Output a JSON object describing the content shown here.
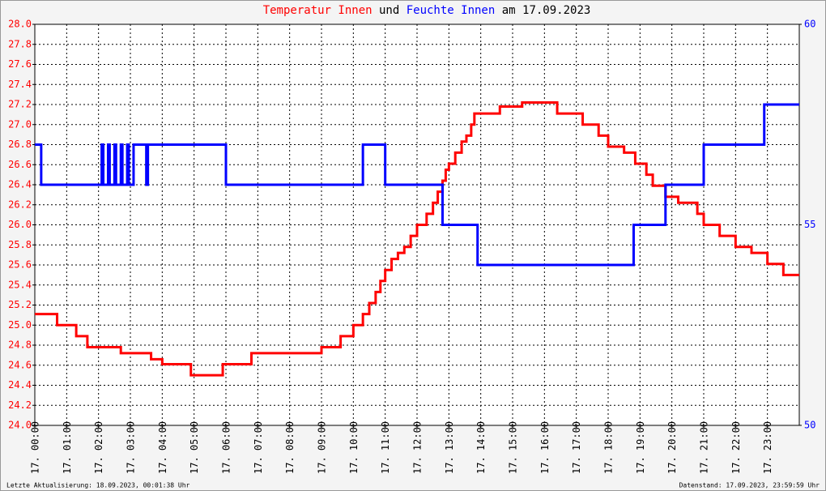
{
  "chart_data": {
    "type": "step-line",
    "title_date": "am 17.09.2023",
    "title_joiner": "und",
    "footer_left": "Letzte Aktualisierung: 18.09.2023, 00:01:38 Uhr",
    "footer_right": "Datenstand: 17.09.2023, 23:59:59 Uhr",
    "grid": true,
    "xlim": [
      0,
      24
    ],
    "xticks": [
      {
        "value": 0,
        "label": "17. 00:00"
      },
      {
        "value": 1,
        "label": "17. 01:00"
      },
      {
        "value": 2,
        "label": "17. 02:00"
      },
      {
        "value": 3,
        "label": "17. 03:00"
      },
      {
        "value": 4,
        "label": "17. 04:00"
      },
      {
        "value": 5,
        "label": "17. 05:00"
      },
      {
        "value": 6,
        "label": "17. 06:00"
      },
      {
        "value": 7,
        "label": "17. 07:00"
      },
      {
        "value": 8,
        "label": "17. 08:00"
      },
      {
        "value": 9,
        "label": "17. 09:00"
      },
      {
        "value": 10,
        "label": "17. 10:00"
      },
      {
        "value": 11,
        "label": "17. 11:00"
      },
      {
        "value": 12,
        "label": "17. 12:00"
      },
      {
        "value": 13,
        "label": "17. 13:00"
      },
      {
        "value": 14,
        "label": "17. 14:00"
      },
      {
        "value": 15,
        "label": "17. 15:00"
      },
      {
        "value": 16,
        "label": "17. 16:00"
      },
      {
        "value": 17,
        "label": "17. 17:00"
      },
      {
        "value": 18,
        "label": "17. 18:00"
      },
      {
        "value": 19,
        "label": "17. 19:00"
      },
      {
        "value": 20,
        "label": "17. 20:00"
      },
      {
        "value": 21,
        "label": "17. 21:00"
      },
      {
        "value": 22,
        "label": "17. 22:00"
      },
      {
        "value": 23,
        "label": "17. 23:00"
      }
    ],
    "ylim": [
      24,
      28
    ],
    "yticks": [
      {
        "value": 24,
        "label": "24.0"
      },
      {
        "value": 24.2,
        "label": "24.2"
      },
      {
        "value": 24.4,
        "label": "24.4"
      },
      {
        "value": 24.6,
        "label": "24.6"
      },
      {
        "value": 24.8,
        "label": "24.8"
      },
      {
        "value": 25,
        "label": "25.0"
      },
      {
        "value": 25.2,
        "label": "25.2"
      },
      {
        "value": 25.4,
        "label": "25.4"
      },
      {
        "value": 25.6,
        "label": "25.6"
      },
      {
        "value": 25.8,
        "label": "25.8"
      },
      {
        "value": 26,
        "label": "26.0"
      },
      {
        "value": 26.2,
        "label": "26.2"
      },
      {
        "value": 26.4,
        "label": "26.4"
      },
      {
        "value": 26.6,
        "label": "26.6"
      },
      {
        "value": 26.8,
        "label": "26.8"
      },
      {
        "value": 27,
        "label": "27.0"
      },
      {
        "value": 27.2,
        "label": "27.2"
      },
      {
        "value": 27.4,
        "label": "27.4"
      },
      {
        "value": 27.6,
        "label": "27.6"
      },
      {
        "value": 27.8,
        "label": "27.8"
      },
      {
        "value": 28,
        "label": "28.0"
      }
    ],
    "y2lim": [
      50,
      60
    ],
    "y2ticks": [
      50,
      55,
      60
    ],
    "series": [
      {
        "name": "Temperatur Innen",
        "color": "#ff0000",
        "x": [
          0,
          0.7,
          1.3,
          1.65,
          2.7,
          3.65,
          4.0,
          4.9,
          5.9,
          6.8,
          9.0,
          9.6,
          10.0,
          10.3,
          10.5,
          10.7,
          10.85,
          11.0,
          11.2,
          11.4,
          11.6,
          11.8,
          12.0,
          12.3,
          12.5,
          12.65,
          12.8,
          12.9,
          13.0,
          13.2,
          13.4,
          13.55,
          13.7,
          13.8,
          14.6,
          15.3,
          16.4,
          17.2,
          17.7,
          18.0,
          18.5,
          18.85,
          19.2,
          19.4,
          19.8,
          20.2,
          20.8,
          21.0,
          21.5,
          22.0,
          22.5,
          23.0,
          23.5,
          24
        ],
        "values": [
          25.11,
          25.0,
          24.89,
          24.78,
          24.72,
          24.66,
          24.61,
          24.5,
          24.61,
          24.72,
          24.78,
          24.89,
          25.0,
          25.11,
          25.22,
          25.33,
          25.44,
          25.55,
          25.66,
          25.72,
          25.78,
          25.89,
          26.0,
          26.11,
          26.22,
          26.33,
          26.44,
          26.55,
          26.61,
          26.72,
          26.83,
          26.89,
          27.0,
          27.11,
          27.18,
          27.22,
          27.11,
          27.0,
          26.89,
          26.78,
          26.72,
          26.61,
          26.5,
          26.39,
          26.28,
          26.22,
          26.11,
          26.0,
          25.89,
          25.78,
          25.72,
          25.61,
          25.5,
          25.5
        ]
      },
      {
        "name": "Feuchte Innen",
        "color": "#0000ff",
        "axis": "y2",
        "x": [
          0,
          0.2,
          2.1,
          2.15,
          2.3,
          2.35,
          2.5,
          2.55,
          2.7,
          2.75,
          2.9,
          2.95,
          3.1,
          3.5,
          3.55,
          6.0,
          10.3,
          11.0,
          12.8,
          13.9,
          18.8,
          19.8,
          21.0,
          22.9,
          24
        ],
        "values": [
          57,
          56,
          57,
          56,
          57,
          56,
          57,
          56,
          57,
          56,
          57,
          56,
          57,
          56,
          57,
          56,
          57,
          56,
          55,
          54,
          55,
          56,
          57,
          58,
          58
        ]
      }
    ]
  }
}
